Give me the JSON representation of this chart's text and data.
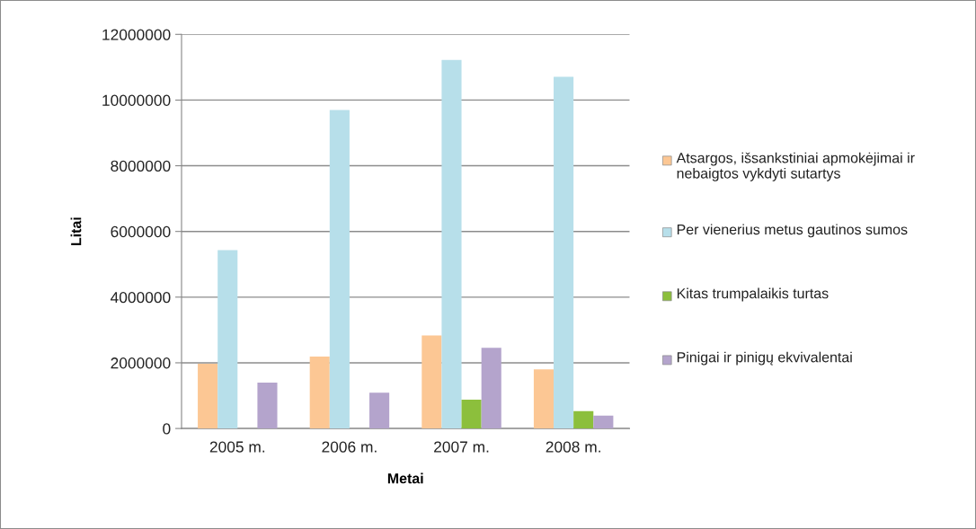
{
  "chart_data": {
    "type": "bar",
    "xlabel": "Metai",
    "ylabel": "Litai",
    "categories": [
      "2005 m.",
      "2006 m.",
      "2007 m.",
      "2008 m."
    ],
    "series": [
      {
        "name": "Atsargos, išsankstiniai apmokėjimai ir nebaigtos vykdyti sutartys",
        "color": "#fcc794",
        "values": [
          1970000,
          2190000,
          2830000,
          1800000
        ]
      },
      {
        "name": "Per vienerius metus gautinos sumos",
        "color": "#b7dfea",
        "values": [
          5430000,
          9700000,
          11220000,
          10710000
        ]
      },
      {
        "name": "Kitas trumpalaikis turtas",
        "color": "#8cbf3c",
        "values": [
          null,
          null,
          880000,
          530000
        ]
      },
      {
        "name": "Pinigai ir pinigų ekvivalentai",
        "color": "#b4a4cc",
        "values": [
          1400000,
          1090000,
          2460000,
          390000
        ]
      }
    ],
    "ylim": [
      0,
      12000000
    ],
    "yticks": [
      0,
      2000000,
      4000000,
      6000000,
      8000000,
      10000000,
      12000000
    ],
    "grid": "y",
    "legend": "right"
  }
}
